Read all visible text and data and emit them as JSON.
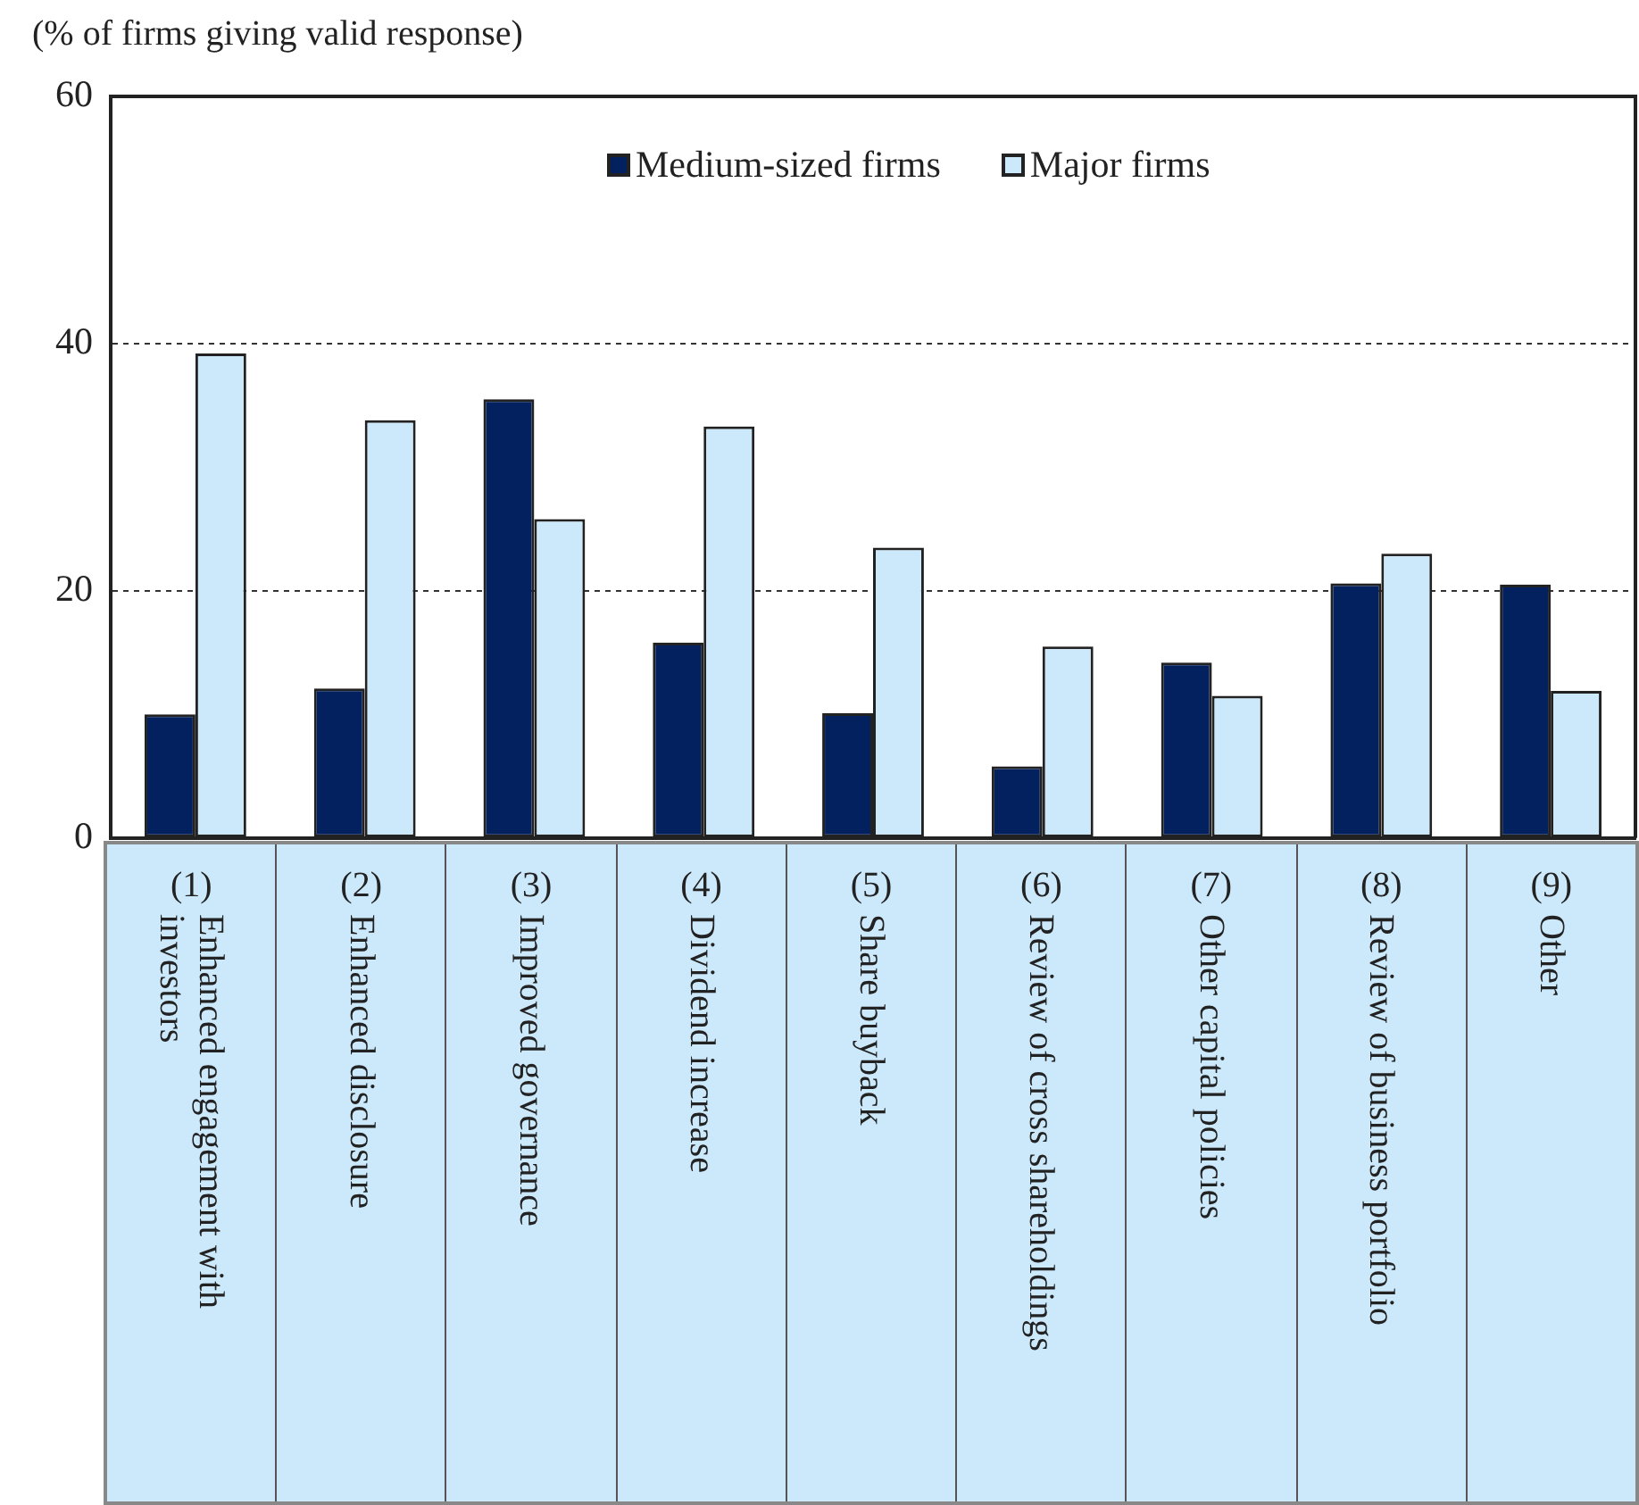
{
  "chart_data": {
    "type": "bar",
    "ylabel": "(% of firms giving valid response)",
    "categories": [
      "(1) Enhanced engagement with investors",
      "(2) Enhanced disclosure",
      "(3) Improved governance",
      "(4) Dividend increase",
      "(5) Share buyback",
      "(6) Review of cross shareholdings",
      "(7) Other capital policies",
      "(8) Review of business portfolio",
      "(9) Other"
    ],
    "series": [
      {
        "name": "Medium-sized firms",
        "color": "#03215e",
        "values": [
          10.0,
          12.1,
          35.5,
          15.8,
          10.1,
          5.8,
          14.2,
          20.6,
          20.5
        ]
      },
      {
        "name": "Major firms",
        "color": "#cce9fb",
        "values": [
          39.2,
          33.8,
          25.8,
          33.3,
          23.5,
          15.5,
          11.5,
          23.0,
          11.9
        ]
      }
    ],
    "ylim": [
      0,
      60
    ],
    "yticks": [
      0,
      20,
      40,
      60
    ],
    "grid": "y",
    "legend": "top"
  }
}
